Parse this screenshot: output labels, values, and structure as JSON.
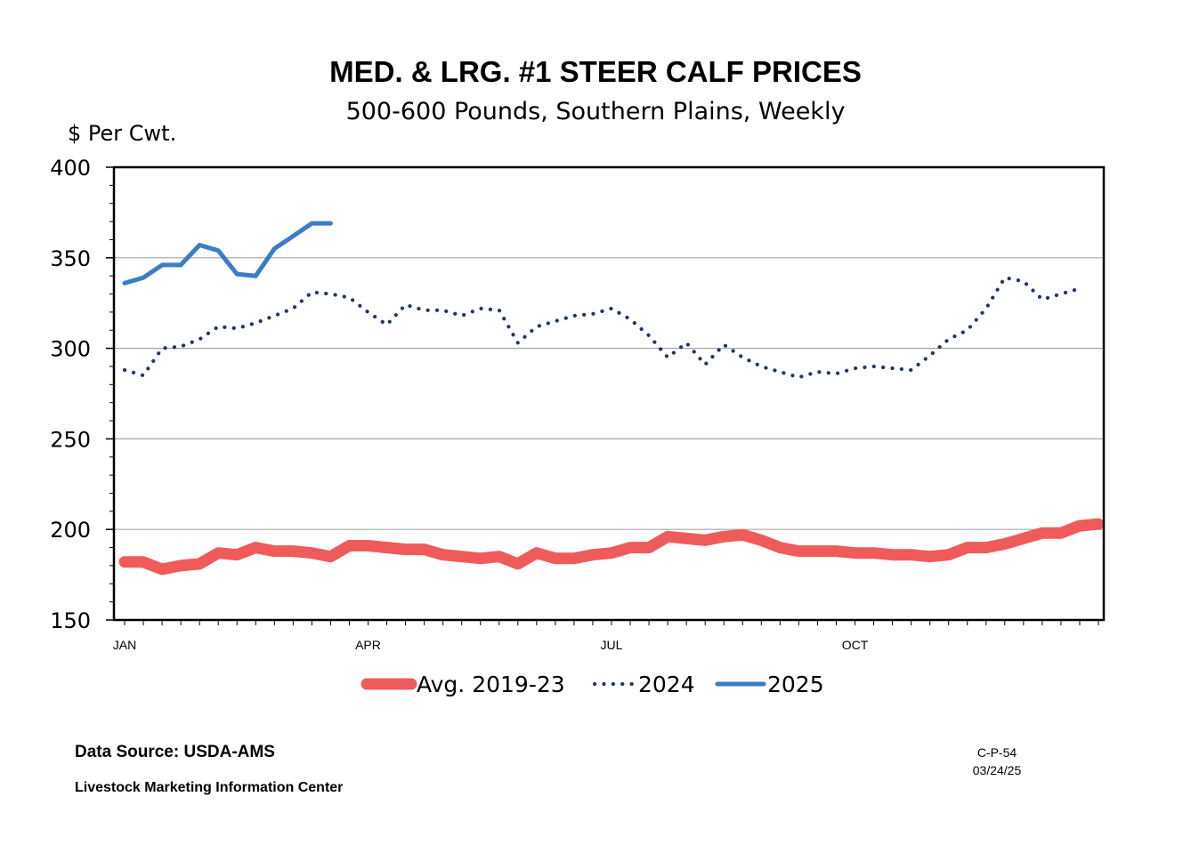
{
  "page": {
    "data_source": "Data Source:  USDA-AMS",
    "organization": "Livestock Marketing Information Center",
    "chart_code": "C-P-54",
    "chart_date": "03/24/25"
  },
  "chart_data": {
    "type": "line",
    "title": "MED. & LRG. #1 STEER CALF PRICES",
    "subtitle": "500-600 Pounds, Southern Plains, Weekly",
    "ylabel": "$ Per Cwt.",
    "xlabel": "",
    "ylim": [
      150,
      400
    ],
    "yticks": [
      150,
      200,
      250,
      300,
      350,
      400
    ],
    "x_unit": "week of year",
    "xlim": [
      1,
      53
    ],
    "x_tick_labels": [
      {
        "label": "JAN",
        "week": 1
      },
      {
        "label": "APR",
        "week": 14
      },
      {
        "label": "JUL",
        "week": 27
      },
      {
        "label": "OCT",
        "week": 40
      }
    ],
    "grid": true,
    "legend_position": "bottom",
    "series": [
      {
        "name": "Avg. 2019-23",
        "color": "#ef5b5b",
        "style": "thick-solid",
        "values": [
          182,
          182,
          178,
          180,
          181,
          187,
          186,
          190,
          188,
          188,
          187,
          185,
          191,
          191,
          190,
          189,
          189,
          186,
          185,
          184,
          185,
          181,
          187,
          184,
          184,
          186,
          187,
          190,
          190,
          196,
          195,
          194,
          196,
          197,
          194,
          190,
          188,
          188,
          188,
          187,
          187,
          186,
          186,
          185,
          186,
          190,
          190,
          192,
          195,
          198,
          198,
          202,
          203
        ]
      },
      {
        "name": "2024",
        "color": "#1f3864",
        "style": "dotted",
        "values": [
          288,
          285,
          300,
          301,
          305,
          312,
          311,
          314,
          318,
          322,
          331,
          330,
          328,
          320,
          313,
          324,
          321,
          321,
          318,
          322,
          321,
          303,
          312,
          315,
          318,
          319,
          322,
          316,
          307,
          295,
          303,
          291,
          302,
          295,
          290,
          287,
          284,
          287,
          286,
          289,
          290,
          289,
          288,
          296,
          305,
          310,
          322,
          339,
          337,
          327,
          330,
          333
        ]
      },
      {
        "name": "2025",
        "color": "#3a7dc9",
        "style": "solid",
        "values": [
          336,
          339,
          346,
          346,
          357,
          354,
          341,
          340,
          355,
          362,
          369,
          369
        ]
      }
    ]
  }
}
